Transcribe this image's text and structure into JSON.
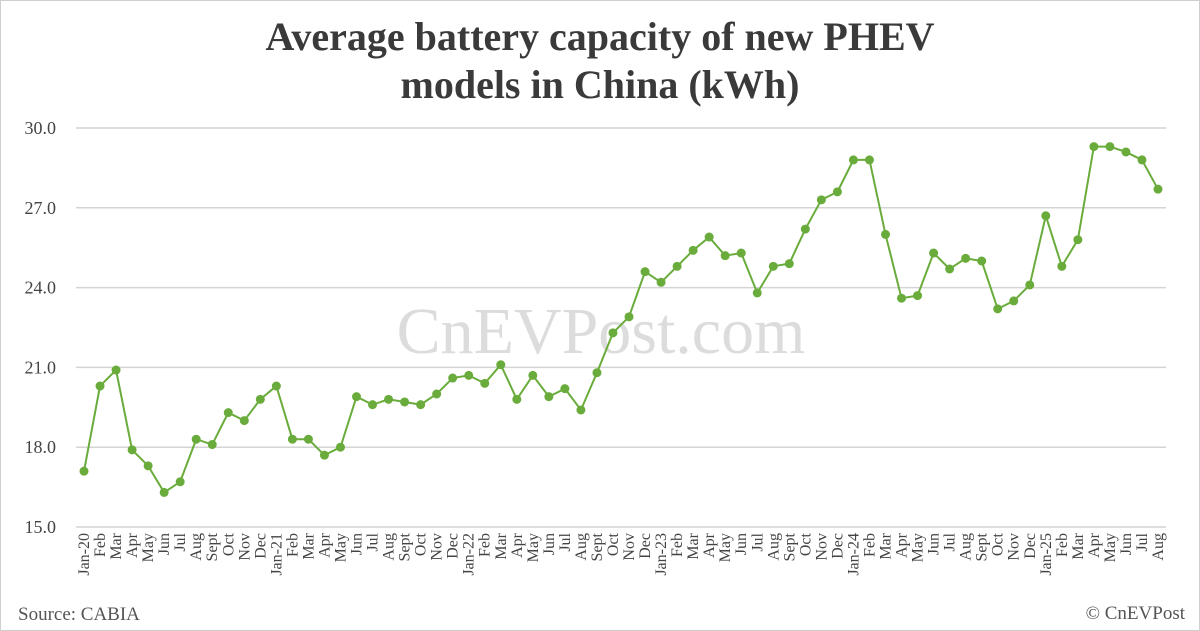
{
  "chart_data": {
    "type": "line",
    "title_lines": [
      "Average battery capacity of new PHEV",
      "models in China (kWh)"
    ],
    "xlabel": "",
    "ylabel": "",
    "ylim": [
      15,
      30
    ],
    "yticks": [
      "15.0",
      "18.0",
      "21.0",
      "24.0",
      "27.0",
      "30.0"
    ],
    "grid": true,
    "categories": [
      "Jan-20",
      "Feb",
      "Mar",
      "Apr",
      "May",
      "Jun",
      "Jul",
      "Aug",
      "Sept",
      "Oct",
      "Nov",
      "Dec",
      "Jan-21",
      "Feb",
      "Mar",
      "Apr",
      "May",
      "Jun",
      "Jul",
      "Aug",
      "Sept",
      "Oct",
      "Nov",
      "Dec",
      "Jan-22",
      "Feb",
      "Mar",
      "Apr",
      "May",
      "Jun",
      "Jul",
      "Aug",
      "Sept",
      "Oct",
      "Nov",
      "Dec",
      "Jan-23",
      "Feb",
      "Mar",
      "Apr",
      "May",
      "Jun",
      "Jul",
      "Aug",
      "Sept",
      "Oct",
      "Nov",
      "Dec",
      "Jan-24",
      "Feb",
      "Mar",
      "Apr",
      "May",
      "Jun",
      "Jul",
      "Aug",
      "Sept",
      "Oct",
      "Nov",
      "Dec",
      "Jan-25",
      "Feb",
      "Mar",
      "Apr",
      "May",
      "Jun",
      "Jul",
      "Aug"
    ],
    "values": [
      17.1,
      20.3,
      20.9,
      17.9,
      17.3,
      16.3,
      16.7,
      18.3,
      18.1,
      19.3,
      19.0,
      19.8,
      20.3,
      18.3,
      18.3,
      17.7,
      18.0,
      19.9,
      19.6,
      19.8,
      19.7,
      19.6,
      20.0,
      20.6,
      20.7,
      20.4,
      21.1,
      19.8,
      20.7,
      19.9,
      20.2,
      19.4,
      20.8,
      22.3,
      22.9,
      24.6,
      24.2,
      24.8,
      25.4,
      25.9,
      25.2,
      25.3,
      23.8,
      24.8,
      24.9,
      26.2,
      27.3,
      27.6,
      28.8,
      28.8,
      26.0,
      23.6,
      23.7,
      25.3,
      24.7,
      25.1,
      25.0,
      23.2,
      23.5,
      24.1,
      26.7,
      24.8,
      25.8,
      29.3,
      29.3,
      29.1,
      28.8,
      27.7
    ],
    "series_color": "#6aac3c",
    "watermark": "CnEVPost.com"
  },
  "footer": {
    "source": "Source: CABIA",
    "copyright": "© CnEVPost"
  }
}
